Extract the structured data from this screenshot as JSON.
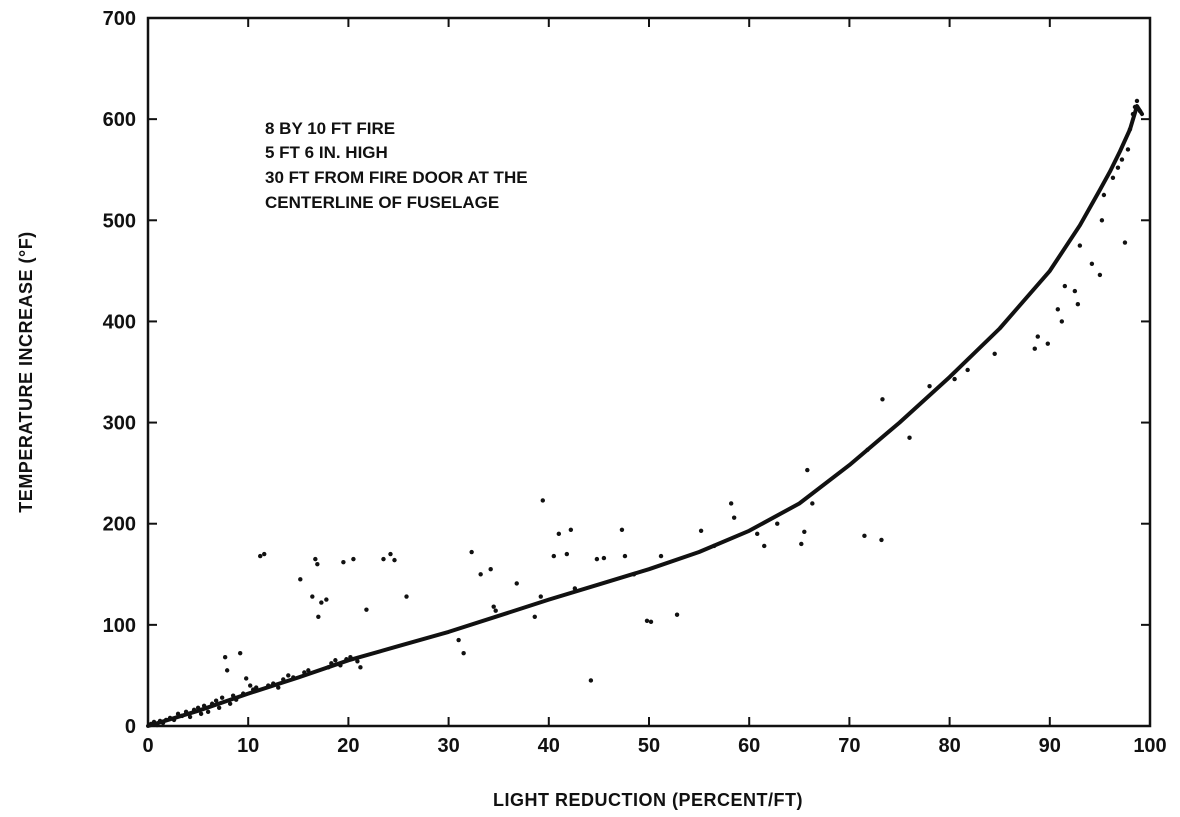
{
  "chart_data": {
    "type": "scatter",
    "xlabel": "LIGHT REDUCTION (PERCENT/FT)",
    "ylabel": "TEMPERATURE INCREASE (°F)",
    "xlim": [
      0,
      100
    ],
    "ylim": [
      0,
      700
    ],
    "x_ticks": [
      0,
      10,
      20,
      30,
      40,
      50,
      60,
      70,
      80,
      90,
      100
    ],
    "y_ticks": [
      0,
      100,
      200,
      300,
      400,
      500,
      600,
      700
    ],
    "grid": false,
    "annotation_lines": [
      "8 BY 10 FT FIRE",
      "5 FT 6 IN. HIGH",
      "30 FT FROM FIRE DOOR AT THE",
      "CENTERLINE OF FUSELAGE"
    ],
    "series": [
      {
        "kind": "points",
        "points": [
          [
            0.3,
            2
          ],
          [
            0.6,
            4
          ],
          [
            0.9,
            1
          ],
          [
            1.2,
            5
          ],
          [
            1.5,
            3
          ],
          [
            1.8,
            6
          ],
          [
            2.2,
            8
          ],
          [
            2.6,
            6
          ],
          [
            3.0,
            12
          ],
          [
            3.4,
            10
          ],
          [
            3.8,
            14
          ],
          [
            4.2,
            9
          ],
          [
            4.6,
            16
          ],
          [
            5.0,
            18
          ],
          [
            5.3,
            12
          ],
          [
            5.6,
            20
          ],
          [
            6.0,
            14
          ],
          [
            6.4,
            22
          ],
          [
            6.8,
            25
          ],
          [
            7.1,
            18
          ],
          [
            7.4,
            28
          ],
          [
            7.7,
            68
          ],
          [
            7.9,
            55
          ],
          [
            8.2,
            22
          ],
          [
            8.5,
            30
          ],
          [
            8.8,
            26
          ],
          [
            9.2,
            72
          ],
          [
            9.5,
            32
          ],
          [
            9.8,
            47
          ],
          [
            10.2,
            40
          ],
          [
            10.5,
            36
          ],
          [
            10.8,
            38
          ],
          [
            11.2,
            168
          ],
          [
            11.6,
            170
          ],
          [
            12.0,
            40
          ],
          [
            12.5,
            42
          ],
          [
            13.0,
            38
          ],
          [
            13.5,
            46
          ],
          [
            14.0,
            50
          ],
          [
            14.5,
            48
          ],
          [
            15.2,
            145
          ],
          [
            15.6,
            53
          ],
          [
            16.0,
            55
          ],
          [
            16.4,
            128
          ],
          [
            16.7,
            165
          ],
          [
            16.9,
            160
          ],
          [
            17.0,
            108
          ],
          [
            17.3,
            122
          ],
          [
            17.8,
            125
          ],
          [
            18.0,
            58
          ],
          [
            18.3,
            62
          ],
          [
            18.7,
            65
          ],
          [
            19.2,
            60
          ],
          [
            19.5,
            162
          ],
          [
            19.8,
            66
          ],
          [
            20.2,
            68
          ],
          [
            20.5,
            165
          ],
          [
            20.9,
            64
          ],
          [
            21.2,
            58
          ],
          [
            21.8,
            115
          ],
          [
            23.5,
            165
          ],
          [
            24.2,
            170
          ],
          [
            24.6,
            164
          ],
          [
            25.8,
            128
          ],
          [
            31.0,
            85
          ],
          [
            31.5,
            72
          ],
          [
            32.3,
            172
          ],
          [
            33.2,
            150
          ],
          [
            34.2,
            155
          ],
          [
            34.5,
            118
          ],
          [
            34.7,
            114
          ],
          [
            36.8,
            141
          ],
          [
            38.6,
            108
          ],
          [
            39.2,
            128
          ],
          [
            39.4,
            223
          ],
          [
            40.5,
            168
          ],
          [
            41.0,
            190
          ],
          [
            41.8,
            170
          ],
          [
            42.2,
            194
          ],
          [
            42.6,
            136
          ],
          [
            44.2,
            45
          ],
          [
            44.8,
            165
          ],
          [
            45.5,
            166
          ],
          [
            47.3,
            194
          ],
          [
            47.6,
            168
          ],
          [
            48.5,
            150
          ],
          [
            49.8,
            104
          ],
          [
            50.2,
            103
          ],
          [
            51.2,
            168
          ],
          [
            52.8,
            110
          ],
          [
            55.2,
            193
          ],
          [
            56.5,
            178
          ],
          [
            58.2,
            220
          ],
          [
            58.5,
            206
          ],
          [
            60.8,
            190
          ],
          [
            61.5,
            178
          ],
          [
            62.8,
            200
          ],
          [
            65.2,
            180
          ],
          [
            65.5,
            192
          ],
          [
            65.8,
            253
          ],
          [
            66.3,
            220
          ],
          [
            71.5,
            188
          ],
          [
            71.8,
            273
          ],
          [
            73.2,
            184
          ],
          [
            73.3,
            323
          ],
          [
            76.0,
            285
          ],
          [
            78.0,
            336
          ],
          [
            80.5,
            343
          ],
          [
            81.8,
            352
          ],
          [
            84.5,
            368
          ],
          [
            88.5,
            373
          ],
          [
            88.8,
            385
          ],
          [
            89.8,
            378
          ],
          [
            90.8,
            412
          ],
          [
            91.2,
            400
          ],
          [
            91.5,
            435
          ],
          [
            92.5,
            430
          ],
          [
            92.8,
            417
          ],
          [
            93.0,
            475
          ],
          [
            94.2,
            457
          ],
          [
            95.0,
            446
          ],
          [
            95.2,
            500
          ],
          [
            95.4,
            525
          ],
          [
            96.3,
            542
          ],
          [
            96.8,
            552
          ],
          [
            97.2,
            560
          ],
          [
            97.5,
            478
          ],
          [
            97.8,
            570
          ],
          [
            98.0,
            590
          ],
          [
            98.3,
            605
          ],
          [
            98.5,
            612
          ],
          [
            98.7,
            618
          ],
          [
            99.0,
            608
          ]
        ]
      },
      {
        "kind": "fit-curve",
        "points": [
          [
            0,
            0
          ],
          [
            5,
            15
          ],
          [
            10,
            32
          ],
          [
            15,
            48
          ],
          [
            20,
            65
          ],
          [
            25,
            79
          ],
          [
            30,
            93
          ],
          [
            35,
            109
          ],
          [
            40,
            125
          ],
          [
            45,
            140
          ],
          [
            50,
            155
          ],
          [
            55,
            172
          ],
          [
            60,
            193
          ],
          [
            65,
            220
          ],
          [
            70,
            258
          ],
          [
            75,
            300
          ],
          [
            80,
            345
          ],
          [
            85,
            393
          ],
          [
            90,
            450
          ],
          [
            93,
            495
          ],
          [
            95,
            530
          ],
          [
            96,
            548
          ],
          [
            97,
            568
          ],
          [
            98,
            590
          ],
          [
            98.7,
            613
          ],
          [
            99.2,
            605
          ]
        ]
      }
    ]
  }
}
